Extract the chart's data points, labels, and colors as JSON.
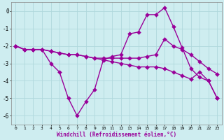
{
  "xlabel": "Windchill (Refroidissement éolien,°C)",
  "hours": [
    0,
    1,
    2,
    3,
    4,
    5,
    6,
    7,
    8,
    9,
    10,
    11,
    12,
    13,
    14,
    15,
    16,
    17,
    18,
    19,
    20,
    21,
    22,
    23
  ],
  "line1": [
    -2.0,
    -2.2,
    -2.2,
    -2.2,
    -2.3,
    -2.4,
    -2.5,
    -2.5,
    -2.6,
    -2.7,
    -2.7,
    -2.7,
    -2.7,
    -2.7,
    -2.7,
    -2.6,
    -2.5,
    -1.6,
    -2.0,
    -2.2,
    -2.5,
    -2.9,
    -3.3,
    -3.6
  ],
  "line2": [
    -2.0,
    -2.2,
    -2.2,
    -2.2,
    -3.0,
    -3.5,
    -5.0,
    -6.0,
    -5.2,
    -4.5,
    -2.8,
    -2.6,
    -2.5,
    -1.3,
    -1.2,
    -0.2,
    -0.2,
    0.2,
    -0.9,
    -2.1,
    -3.3,
    -3.8,
    -4.0,
    -5.0
  ],
  "line3": [
    -2.0,
    -2.2,
    -2.2,
    -2.2,
    -2.3,
    -2.4,
    -2.5,
    -2.5,
    -2.6,
    -2.7,
    -2.8,
    -2.9,
    -3.0,
    -3.1,
    -3.2,
    -3.2,
    -3.2,
    -3.3,
    -3.5,
    -3.7,
    -3.9,
    -3.5,
    -4.0,
    -5.0
  ],
  "line_color": "#990099",
  "bg_color": "#ceedf0",
  "grid_color": "#b0d8dc",
  "ylim": [
    -6.5,
    0.5
  ],
  "yticks": [
    0,
    -1,
    -2,
    -3,
    -4,
    -5,
    -6
  ],
  "markersize": 3,
  "linewidth": 1.0
}
